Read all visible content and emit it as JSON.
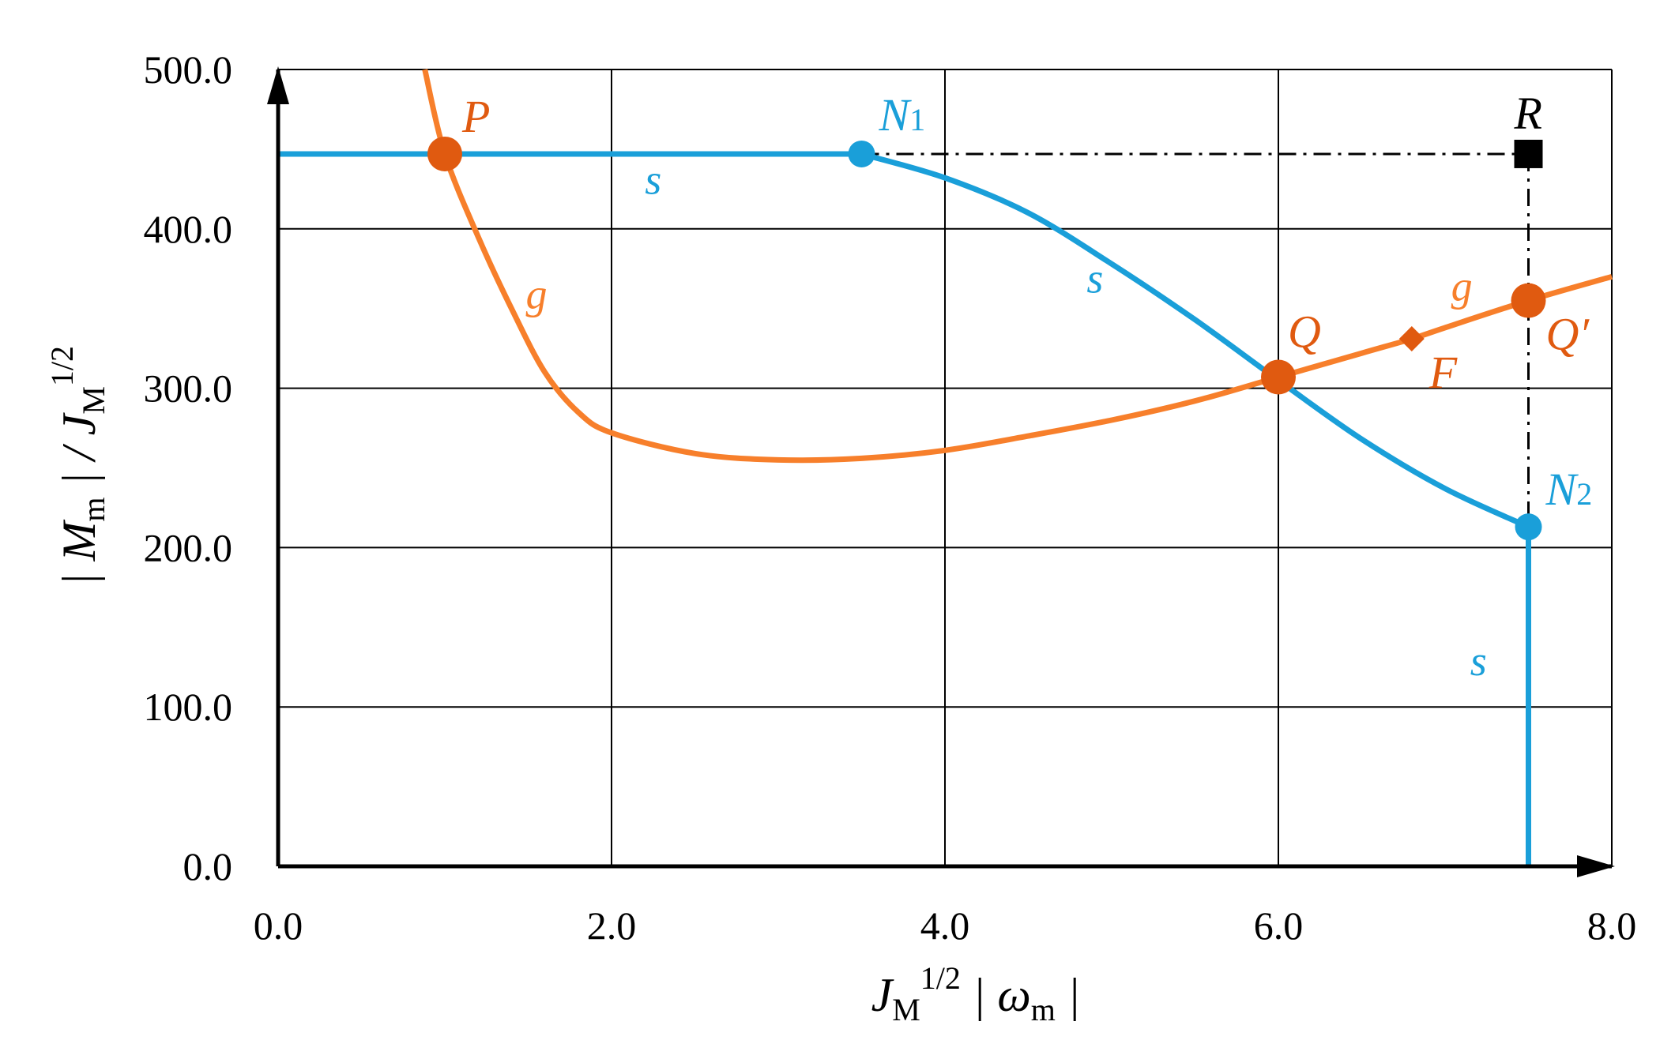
{
  "chart_data": {
    "type": "line",
    "title": "",
    "xlabel": "J_M^(1/2) |ω_m|",
    "ylabel": "|M_m| / J_M^(1/2)",
    "xlabel_parts": {
      "main": "J",
      "sub": "M",
      "sup": "1/2",
      "rest": " | ω",
      "rest_sub": "m",
      "end": " |"
    },
    "ylabel_parts": {
      "pre": "| M",
      "sub1": "m",
      "mid": " | / J",
      "sub2": "M",
      "sup": "1/2"
    },
    "xlim": [
      0,
      8
    ],
    "ylim": [
      0,
      500
    ],
    "x_ticks": [
      "0.0",
      "2.0",
      "4.0",
      "6.0",
      "8.0"
    ],
    "x_tick_values": [
      0,
      2,
      4,
      6,
      8
    ],
    "y_ticks": [
      "0.0",
      "100.0",
      "200.0",
      "300.0",
      "400.0",
      "500.0"
    ],
    "y_tick_values": [
      0,
      100,
      200,
      300,
      400,
      500
    ],
    "grid": true,
    "colors": {
      "s": "#1a9fd9",
      "g": "#f77f2b",
      "points_g": "#e05a10",
      "reference": "#000000"
    },
    "series": [
      {
        "name": "s",
        "color": "#1a9fd9",
        "points": [
          [
            0,
            447
          ],
          [
            3.5,
            447
          ],
          [
            4.0,
            432
          ],
          [
            4.5,
            410
          ],
          [
            5.0,
            378
          ],
          [
            5.5,
            343
          ],
          [
            6.0,
            305
          ],
          [
            6.5,
            268
          ],
          [
            7.0,
            237
          ],
          [
            7.5,
            213
          ],
          [
            7.5,
            0
          ]
        ]
      },
      {
        "name": "g",
        "color": "#f77f2b",
        "points": [
          [
            0.88,
            500
          ],
          [
            1.0,
            447
          ],
          [
            1.2,
            395
          ],
          [
            1.4,
            350
          ],
          [
            1.6,
            310
          ],
          [
            1.8,
            285
          ],
          [
            2.0,
            272
          ],
          [
            2.5,
            259
          ],
          [
            3.0,
            255
          ],
          [
            3.5,
            256
          ],
          [
            4.0,
            261
          ],
          [
            4.5,
            270
          ],
          [
            5.0,
            280
          ],
          [
            5.5,
            292
          ],
          [
            6.0,
            307
          ],
          [
            6.5,
            322
          ],
          [
            6.8,
            331
          ],
          [
            7.0,
            338
          ],
          [
            7.5,
            355
          ],
          [
            8.0,
            370
          ]
        ]
      }
    ],
    "reference_lines": [
      {
        "from": [
          3.5,
          447
        ],
        "to": [
          7.5,
          447
        ]
      },
      {
        "from": [
          7.5,
          447
        ],
        "to": [
          7.5,
          213
        ]
      }
    ],
    "marked_points": [
      {
        "label": "P",
        "x": 1.0,
        "y": 447,
        "marker": "circle",
        "color": "#e05a10"
      },
      {
        "label": "N",
        "label_sub": "1",
        "x": 3.5,
        "y": 447,
        "marker": "circle",
        "color": "#1a9fd9"
      },
      {
        "label": "Q",
        "x": 6.0,
        "y": 307,
        "marker": "circle",
        "color": "#e05a10"
      },
      {
        "label": "F",
        "x": 6.8,
        "y": 331,
        "marker": "diamond",
        "color": "#e05a10"
      },
      {
        "label": "Q′",
        "x": 7.5,
        "y": 355,
        "marker": "circle",
        "color": "#e05a10"
      },
      {
        "label": "N",
        "label_sub": "2",
        "x": 7.5,
        "y": 213,
        "marker": "circle",
        "color": "#1a9fd9"
      },
      {
        "label": "R",
        "x": 7.5,
        "y": 447,
        "marker": "square",
        "color": "#000000"
      }
    ],
    "curve_labels": [
      {
        "text": "s",
        "series": "s",
        "x": 2.25,
        "y": 422
      },
      {
        "text": "s",
        "series": "s",
        "x": 4.9,
        "y": 360
      },
      {
        "text": "s",
        "series": "s",
        "x": 7.2,
        "y": 120
      },
      {
        "text": "g",
        "series": "g",
        "x": 1.55,
        "y": 350
      },
      {
        "text": "g",
        "series": "g",
        "x": 7.1,
        "y": 355
      }
    ]
  }
}
